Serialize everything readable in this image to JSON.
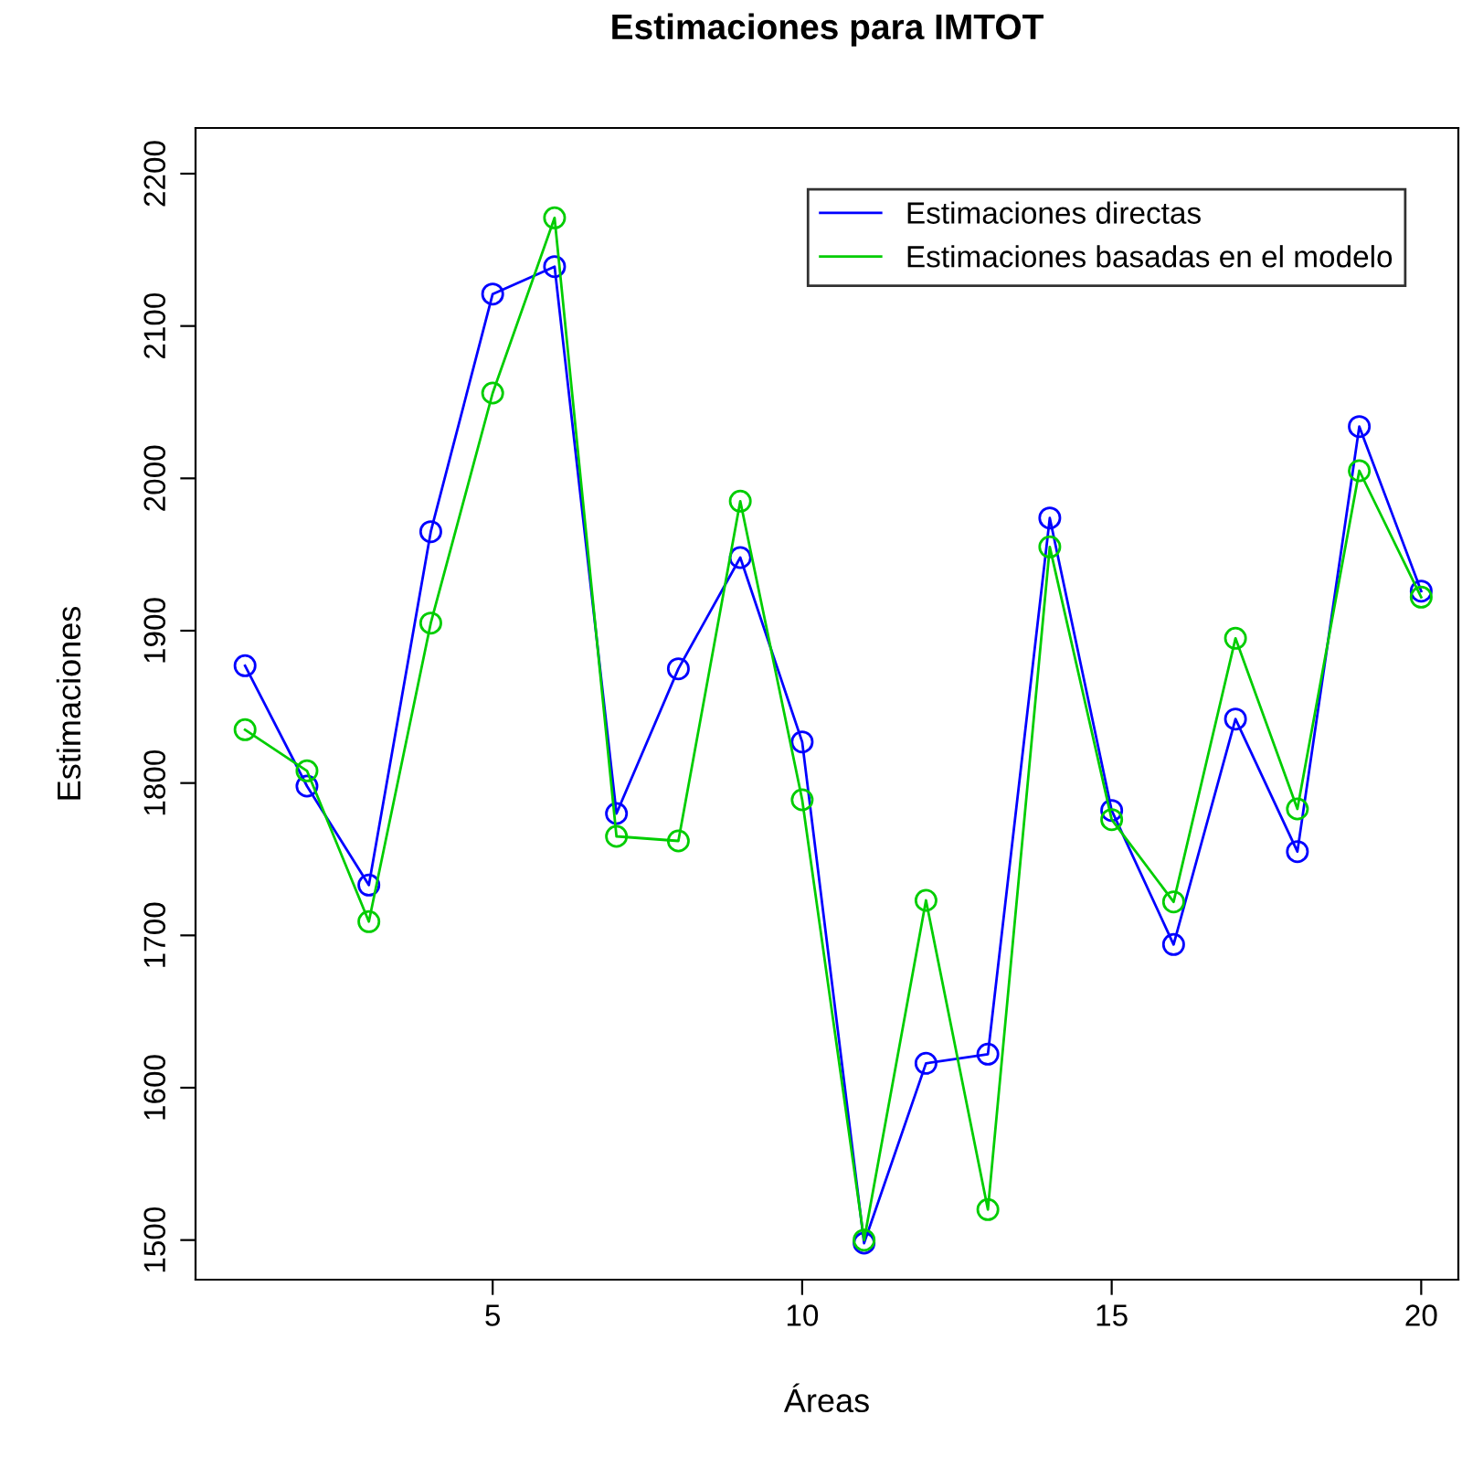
{
  "chart_data": {
    "type": "line",
    "title": "Estimaciones para IMTOT",
    "xlabel": "Áreas",
    "ylabel": "Estimaciones",
    "x": [
      1,
      2,
      3,
      4,
      5,
      6,
      7,
      8,
      9,
      10,
      11,
      12,
      13,
      14,
      15,
      16,
      17,
      18,
      19,
      20
    ],
    "series": [
      {
        "name": "Estimaciones directas",
        "color": "#0000ff",
        "values": [
          1877,
          1798,
          1733,
          1965,
          2121,
          2139,
          1780,
          1875,
          1948,
          1827,
          1498,
          1616,
          1622,
          1974,
          1782,
          1694,
          1842,
          1755,
          2034,
          1926
        ]
      },
      {
        "name": "Estimaciones basadas en el modelo",
        "color": "#00cd00",
        "values": [
          1835,
          1808,
          1709,
          1905,
          2056,
          2171,
          1765,
          1762,
          1985,
          1789,
          1500,
          1723,
          1520,
          1955,
          1776,
          1722,
          1895,
          1783,
          2005,
          1922
        ]
      }
    ],
    "xlim": [
      0.2,
      20.6
    ],
    "ylim": [
      1474,
      2230
    ],
    "xticks": [
      5,
      10,
      15,
      20
    ],
    "yticks": [
      1500,
      1600,
      1700,
      1800,
      1900,
      2000,
      2100,
      2200
    ],
    "marker": "circle",
    "line_style": "solid",
    "legend": "top right",
    "grid": false
  }
}
